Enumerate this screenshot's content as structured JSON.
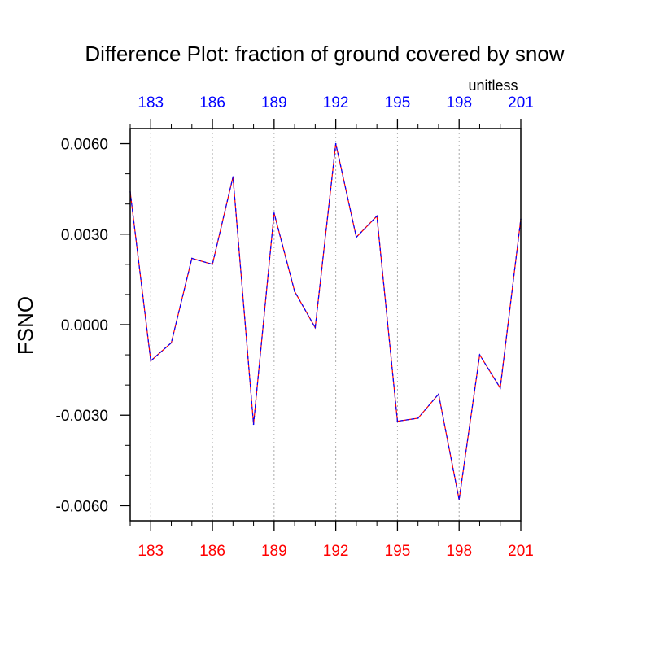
{
  "chart_data": {
    "type": "line",
    "title": "Difference Plot: fraction of ground covered by snow",
    "units_label": "unitless",
    "ylabel": "FSNO",
    "xlabel": "",
    "xlim": [
      182,
      201
    ],
    "ylim": [
      -0.0065,
      0.0065
    ],
    "x_ticks": [
      183,
      186,
      189,
      192,
      195,
      198,
      201
    ],
    "x_tick_labels": [
      "183",
      "186",
      "189",
      "192",
      "195",
      "198",
      "201"
    ],
    "y_ticks": [
      0.006,
      0.003,
      0.0,
      -0.003,
      -0.006
    ],
    "y_tick_labels": [
      "0.0060",
      "0.0030",
      "0.0000",
      "-0.0030",
      "-0.0060"
    ],
    "y_minor_step": 0.001,
    "x_minor_step": 1,
    "grid": "vertical dotted at major x ticks",
    "colors": {
      "line_primary": "#ff0000",
      "line_secondary": "#0000ff",
      "bottom_tick_labels": "#ff0000",
      "top_tick_labels": "#0000ff",
      "left_tick_labels": "#000000",
      "grid": "#aaaaaa"
    },
    "series": [
      {
        "style": "dashed",
        "x": [
          182,
          183,
          184,
          185,
          186,
          187,
          188,
          189,
          190,
          191,
          192,
          193,
          194,
          195,
          196,
          197,
          198,
          199,
          200,
          201
        ],
        "y": [
          0.0044,
          -0.0012,
          -0.0006,
          0.0022,
          0.002,
          0.0049,
          -0.0033,
          0.0037,
          0.0011,
          -0.0001,
          0.006,
          0.0029,
          0.0036,
          -0.0032,
          -0.0031,
          -0.0023,
          -0.0058,
          -0.001,
          -0.0021,
          0.0035
        ]
      }
    ]
  }
}
